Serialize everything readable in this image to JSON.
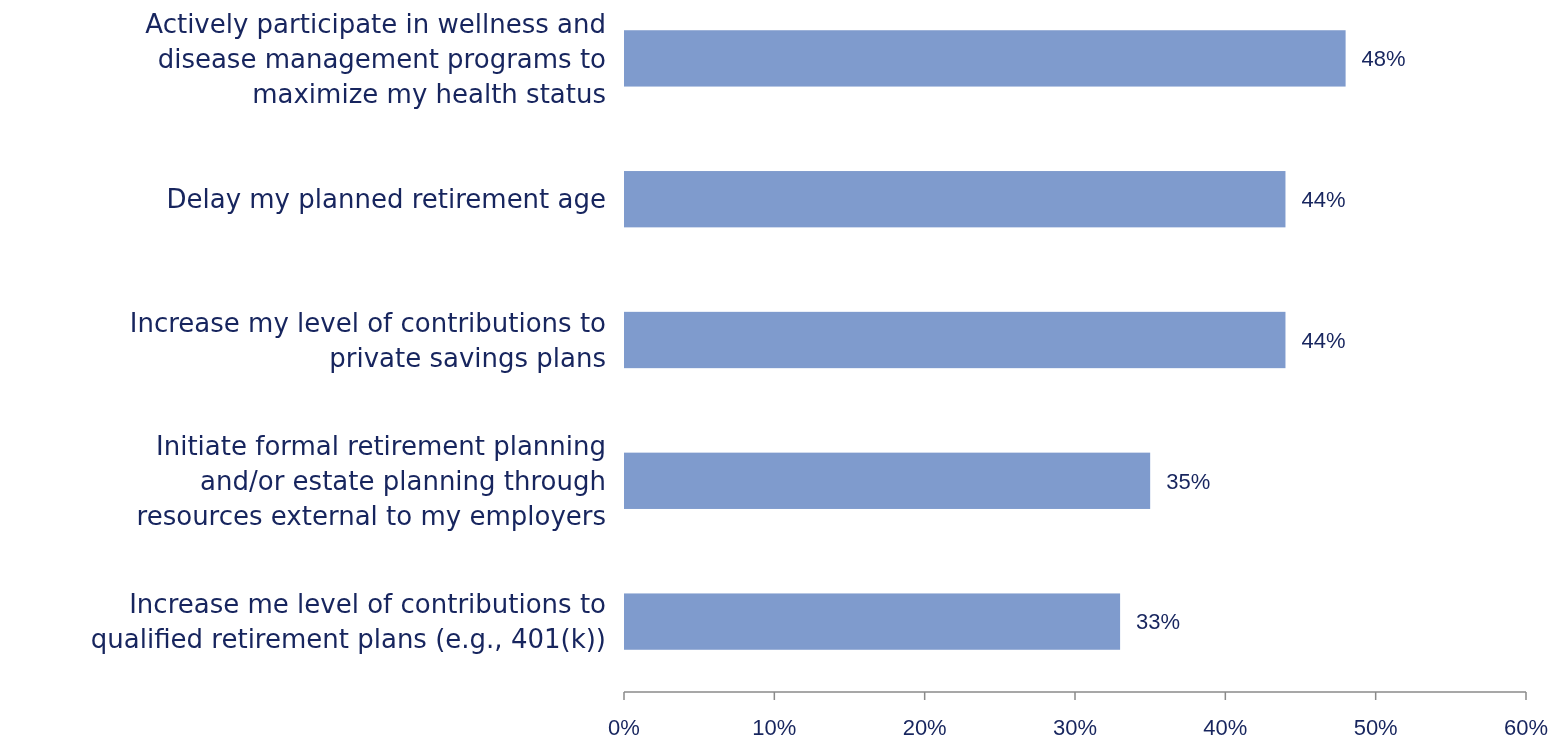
{
  "chart_data": {
    "type": "bar",
    "orientation": "horizontal",
    "categories": [
      "Actively participate in wellness and\ndisease management programs to\nmaximize my health status",
      "Delay my planned retirement age",
      "Increase my level of contributions to\nprivate savings plans",
      "Initiate formal retirement planning\nand/or estate planning through\nresources external to my employers",
      "Increase me level of contributions to\nqualified retirement plans (e.g., 401(k))"
    ],
    "values": [
      48,
      44,
      44,
      35,
      33
    ],
    "color": "#7f9bcd",
    "xlim": [
      0,
      60
    ],
    "xticks": [
      {
        "value": 0,
        "label": "0%"
      },
      {
        "value": 10,
        "label": "10%"
      },
      {
        "value": 20,
        "label": "20%"
      },
      {
        "value": 30,
        "label": "30%"
      },
      {
        "value": 40,
        "label": "40%"
      },
      {
        "value": 50,
        "label": "50%"
      },
      {
        "value": 60,
        "label": "60%"
      }
    ],
    "value_labels": [
      "48%",
      "44%",
      "44%",
      "35%",
      "33%"
    ]
  }
}
